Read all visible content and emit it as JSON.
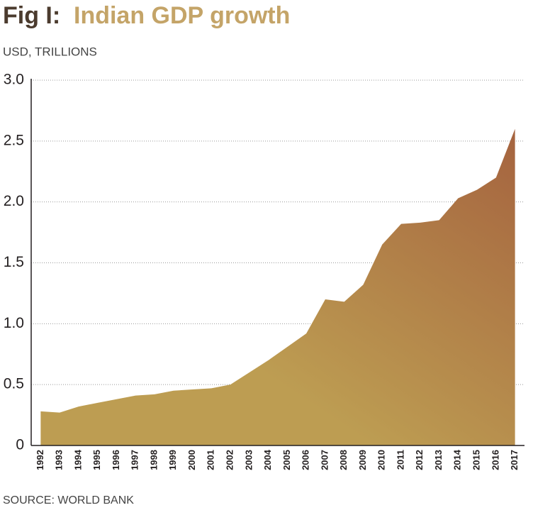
{
  "chart_data": {
    "type": "area",
    "figure_label": "Fig I:",
    "title": "Indian GDP growth",
    "subtitle": "USD, TRILLIONS",
    "source": "SOURCE: WORLD BANK",
    "categories": [
      "1992",
      "1993",
      "1994",
      "1995",
      "1996",
      "1997",
      "1998",
      "1999",
      "2000",
      "2001",
      "2002",
      "2003",
      "2004",
      "2005",
      "2006",
      "2007",
      "2008",
      "2009",
      "2010",
      "2011",
      "2012",
      "2013",
      "2014",
      "2015",
      "2016",
      "2017"
    ],
    "values": [
      0.28,
      0.27,
      0.32,
      0.35,
      0.38,
      0.41,
      0.42,
      0.45,
      0.46,
      0.47,
      0.5,
      0.6,
      0.7,
      0.81,
      0.92,
      1.2,
      1.18,
      1.32,
      1.65,
      1.82,
      1.83,
      1.85,
      2.03,
      2.1,
      2.2,
      2.6
    ],
    "gradient": [
      "#bd9d52",
      "#a5633f"
    ],
    "ylim": [
      0,
      3
    ],
    "yticks": [
      0,
      0.5,
      {
        "value": 1,
        "label": "1.0"
      },
      1.5,
      {
        "value": 2,
        "label": "2.0"
      },
      2.5,
      {
        "value": 3,
        "label": "3.0"
      }
    ],
    "grid": true
  }
}
